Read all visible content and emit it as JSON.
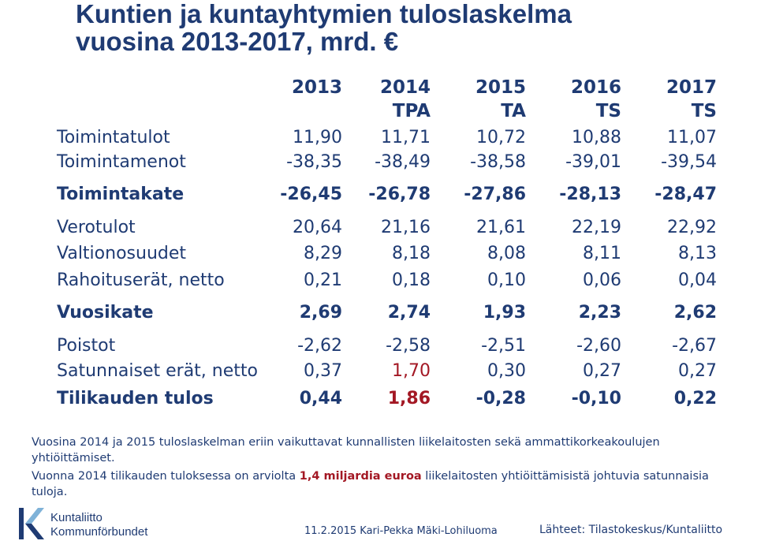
{
  "title": {
    "line1": "Kuntien ja kuntayhtymien tuloslaskelma",
    "line2": "vuosina 2013-2017, mrd. €"
  },
  "columns": [
    {
      "year": "2013",
      "tag": ""
    },
    {
      "year": "2014",
      "tag": "TPA"
    },
    {
      "year": "2015",
      "tag": "TA"
    },
    {
      "year": "2016",
      "tag": "TS"
    },
    {
      "year": "2017",
      "tag": "TS"
    }
  ],
  "rows": [
    {
      "label": "Toimintatulot",
      "values": [
        "11,90",
        "11,71",
        "10,72",
        "10,88",
        "11,07"
      ],
      "bold": false
    },
    {
      "label": "Toimintamenot",
      "values": [
        "-38,35",
        "-38,49",
        "-38,58",
        "-39,01",
        "-39,54"
      ],
      "bold": false
    },
    {
      "label": "Toimintakate",
      "values": [
        "-26,45",
        "-26,78",
        "-27,86",
        "-28,13",
        "-28,47"
      ],
      "bold": true
    },
    {
      "label": "Verotulot",
      "values": [
        "20,64",
        "21,16",
        "21,61",
        "22,19",
        "22,92"
      ],
      "bold": false
    },
    {
      "label": "Valtionosuudet",
      "values": [
        "8,29",
        "8,18",
        "8,08",
        "8,11",
        "8,13"
      ],
      "bold": false
    },
    {
      "label": "Rahoituserät, netto",
      "values": [
        "0,21",
        "0,18",
        "0,10",
        "0,06",
        "0,04"
      ],
      "bold": false
    },
    {
      "label": "Vuosikate",
      "values": [
        "2,69",
        "2,74",
        "1,93",
        "2,23",
        "2,62"
      ],
      "bold": true
    },
    {
      "label": "Poistot",
      "values": [
        "-2,62",
        "-2,58",
        "-2,51",
        "-2,60",
        "-2,67"
      ],
      "bold": false
    },
    {
      "label": "Satunnaiset erät, netto",
      "values": [
        "0,37",
        "1,70",
        "0,30",
        "0,27",
        "0,27"
      ],
      "bold": false
    },
    {
      "label": "Tilikauden tulos",
      "values": [
        "0,44",
        "1,86",
        "-0,28",
        "-0,10",
        "0,22"
      ],
      "bold": true
    }
  ],
  "notes": {
    "note1": "Vuosina 2014 ja 2015 tuloslaskelman eriin vaikuttavat kunnallisten liikelaitosten sekä ammattikorkeakoulujen yhtiöittämiset.",
    "note2_a": "Vuonna 2014 tilikauden tuloksessa on arviolta ",
    "note2_b": "1,4 miljardia euroa",
    "note2_c": " liikelaitosten  yhtiöittämisistä  johtuvia satunnaisia tuloja."
  },
  "footer": {
    "logo_line1": "Kuntaliitto",
    "logo_line2": "Kommunförbundet",
    "date_author": "11.2.2015 Kari-Pekka Mäki-Lohiluoma",
    "source": "Lähteet: Tilastokeskus/Kuntaliitto"
  },
  "colors": {
    "text": "#1f3b73",
    "highlight": "#a31824",
    "logo_blue": "#1f3b73",
    "logo_light": "#7fb2d8"
  }
}
